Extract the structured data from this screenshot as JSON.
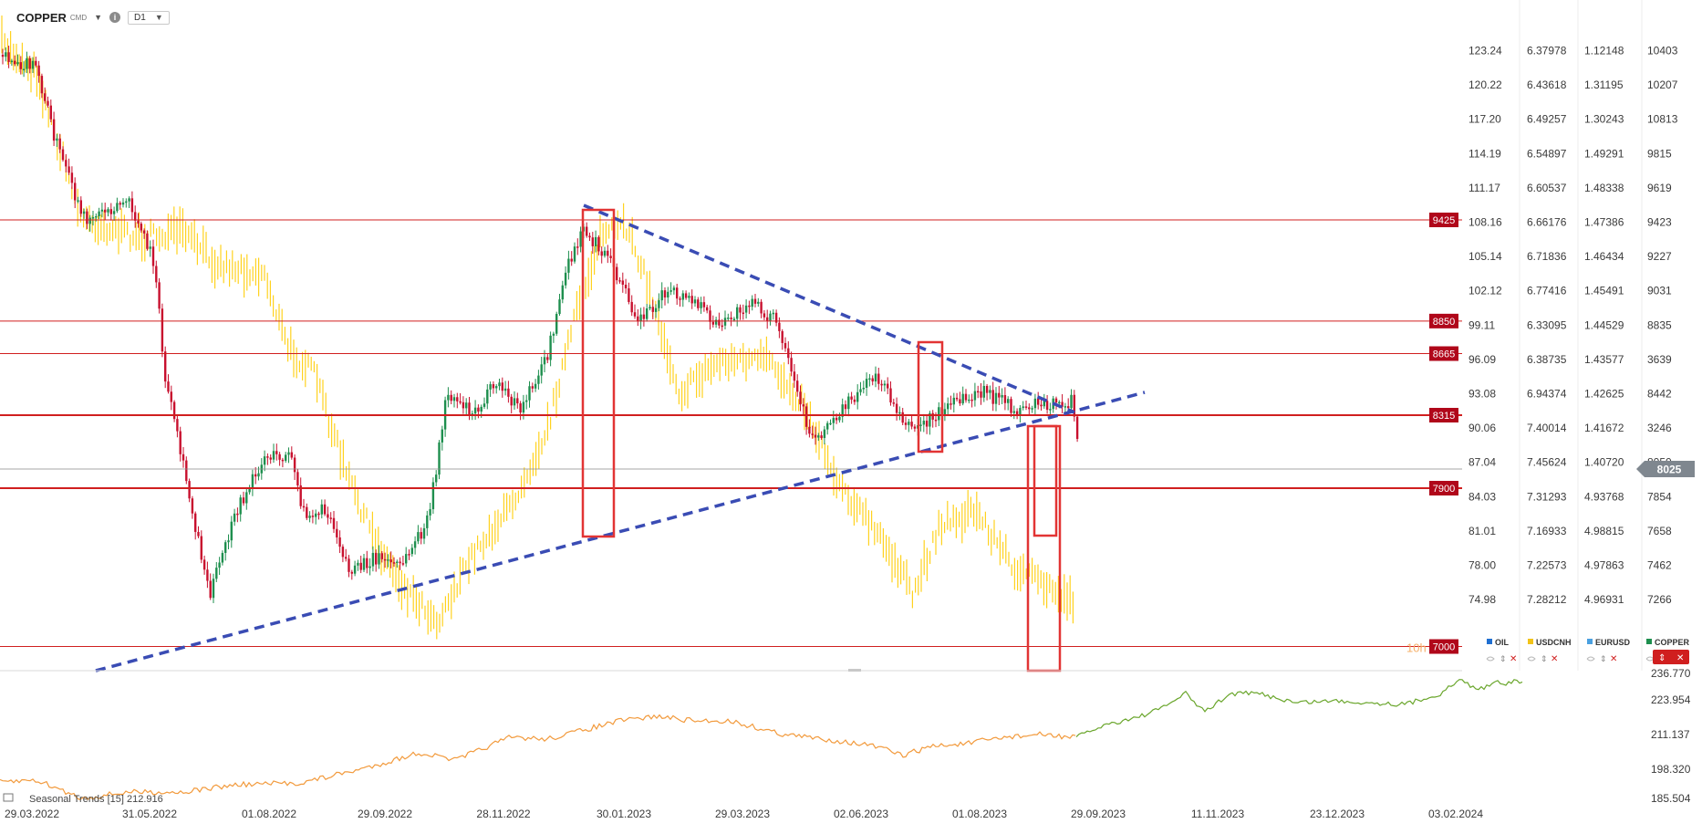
{
  "header": {
    "symbol": "COPPER",
    "symbol_sub": "CMD",
    "timeframe": "D1"
  },
  "colors": {
    "up": "#1e8f4e",
    "down": "#c8102e",
    "yellow": "#ffd21f",
    "hline": "#d01f1f",
    "trend": "#3a4cb4",
    "level_bg": "#b0071a",
    "box": "#e23434",
    "ind_orange": "#f29a3c",
    "ind_green": "#6aa62c"
  },
  "chart_data": {
    "type": "line",
    "title": "COPPER",
    "price_axis": {
      "labels": [
        "123.24",
        "120.22",
        "117.20",
        "114.19",
        "111.17",
        "108.16",
        "105.14",
        "102.12",
        "99.11",
        "96.09",
        "93.08",
        "90.06",
        "87.04",
        "84.03",
        "81.01",
        "78.00",
        "74.98"
      ],
      "usdcnh": [
        "6.37978",
        "6.43618",
        "6.49257",
        "6.54897",
        "6.60537",
        "6.66176",
        "6.71836",
        "6.77416",
        "6.33095",
        "6.38735",
        "6.94374",
        "7.40014",
        "7.45624",
        "7.31293",
        "7.16933",
        "7.22573",
        "7.28212"
      ],
      "eurusd": [
        "1.12148",
        "1.31195",
        "1.30243",
        "1.49291",
        "1.48338",
        "1.47386",
        "1.46434",
        "1.45491",
        "1.44529",
        "1.43577",
        "1.42625",
        "1.41672",
        "1.40720",
        "4.93768",
        "4.98815",
        "4.97863",
        "4.96931"
      ],
      "copper": [
        "10403",
        "10207",
        "10813",
        "9815",
        "9619",
        "9423",
        "9227",
        "9031",
        "8835",
        "3639",
        "8442",
        "3246",
        "8050",
        "7854",
        "7658",
        "7462",
        "7266"
      ],
      "current_price": "8025"
    },
    "levels": [
      {
        "label": "9425",
        "value": 9425
      },
      {
        "label": "8850",
        "value": 8850
      },
      {
        "label": "8665",
        "value": 8665
      },
      {
        "label": "8315",
        "value": 8315
      },
      {
        "label": "7900",
        "value": 7900
      },
      {
        "label": "7000",
        "value": 7000
      }
    ],
    "level_extra_text": "10h",
    "x_labels": [
      "29.03.2022",
      "31.05.2022",
      "01.08.2022",
      "29.09.2022",
      "28.11.2022",
      "30.01.2023",
      "29.03.2023",
      "02.06.2023",
      "01.08.2023",
      "29.09.2023",
      "11.11.2023",
      "23.12.2023",
      "03.02.2024"
    ],
    "legend": [
      {
        "name": "OIL",
        "color": "#1f6fd1"
      },
      {
        "name": "USDCNH",
        "color": "#f2c318"
      },
      {
        "name": "EURUSD",
        "color": "#4aa0e0"
      },
      {
        "name": "COPPER",
        "color": "#1e8f4e"
      }
    ],
    "indicator": {
      "name": "Seasonal Trends",
      "params": "[15]",
      "value": "212.916",
      "axis_labels": [
        "236.770",
        "223.954",
        "211.137",
        "198.320",
        "185.504"
      ]
    }
  }
}
